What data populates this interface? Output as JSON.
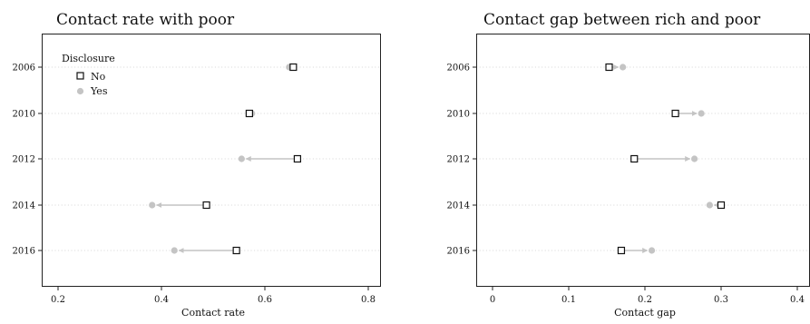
{
  "colors": {
    "no": "#111111",
    "yes": "#c4c4c4",
    "grid": "#cfcfcf",
    "axis": "#222222"
  },
  "legend": {
    "title": "Disclosure",
    "items": [
      "No",
      "Yes"
    ]
  },
  "chart_data": [
    {
      "type": "dot",
      "title": "Contact rate with poor",
      "xlabel": "Contact rate",
      "ylabel": "",
      "xlim": [
        0.2,
        0.8
      ],
      "xticks": [
        0.2,
        0.4,
        0.6,
        0.8
      ],
      "xtick_labels": [
        "0.2",
        "0.4",
        "0.6",
        "0.8"
      ],
      "categories": [
        "2006",
        "2010",
        "2012",
        "2014",
        "2016"
      ],
      "series": [
        {
          "name": "No",
          "values": [
            0.655,
            0.57,
            0.663,
            0.487,
            0.545
          ]
        },
        {
          "name": "Yes",
          "values": [
            0.647,
            0.575,
            0.555,
            0.382,
            0.425
          ]
        }
      ],
      "legend_position": "top-left",
      "grid": "horizontal dotted"
    },
    {
      "type": "dot",
      "title": "Contact gap between rich and poor",
      "xlabel": "Contact gap",
      "ylabel": "",
      "xlim": [
        0,
        0.4
      ],
      "xticks": [
        0,
        0.1,
        0.2,
        0.3,
        0.4
      ],
      "xtick_labels": [
        "0",
        "0.1",
        "0.2",
        "0.3",
        "0.4"
      ],
      "categories": [
        "2006",
        "2010",
        "2012",
        "2014",
        "2016"
      ],
      "series": [
        {
          "name": "No",
          "values": [
            0.153,
            0.24,
            0.186,
            0.3,
            0.169
          ]
        },
        {
          "name": "Yes",
          "values": [
            0.171,
            0.274,
            0.265,
            0.285,
            0.209
          ]
        }
      ],
      "grid": "horizontal dotted"
    }
  ]
}
